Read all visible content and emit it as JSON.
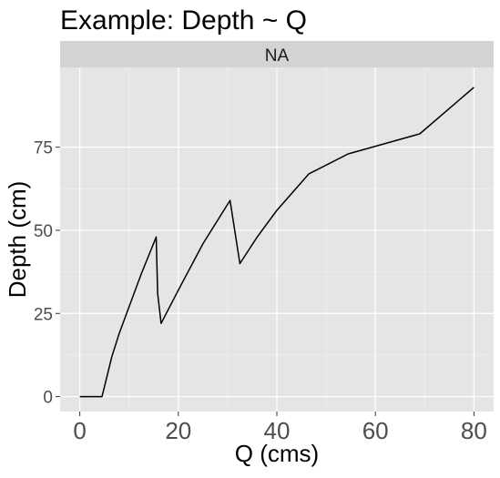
{
  "chart_data": {
    "type": "line",
    "title": "Example: Depth ~ Q",
    "facet_label": "NA",
    "xlabel": "Q (cms)",
    "ylabel": "Depth (cm)",
    "xlim": [
      -4,
      84
    ],
    "ylim": [
      -4.5,
      99
    ],
    "x_ticks": [
      0,
      20,
      40,
      60,
      80
    ],
    "x_tick_labels": [
      "0",
      "20",
      "40",
      "60",
      "80"
    ],
    "y_ticks": [
      0,
      25,
      50,
      75
    ],
    "y_tick_labels": [
      "0",
      "25",
      "50",
      "75"
    ],
    "grid": true,
    "legend": "none",
    "series": [
      {
        "x": [
          0,
          4.5,
          5.5,
          6.5,
          8,
          10,
          12.5,
          15.5,
          15.8,
          16.5,
          20,
          25,
          30.5,
          32.5,
          36,
          40,
          46.5,
          54.5,
          69,
          80
        ],
        "y": [
          0,
          0,
          6,
          12,
          19,
          27,
          37,
          48,
          31,
          22,
          32,
          46,
          59,
          40,
          48,
          56,
          67,
          73,
          79,
          93
        ]
      }
    ]
  },
  "colors": {
    "panel_background": "#e5e5e5",
    "strip_background": "#d3d3d3",
    "grid_major": "#ffffff",
    "grid_minor": "#f1f1f1",
    "line": "#000000",
    "tick_label": "#4d4d4d",
    "text": "#000000"
  }
}
